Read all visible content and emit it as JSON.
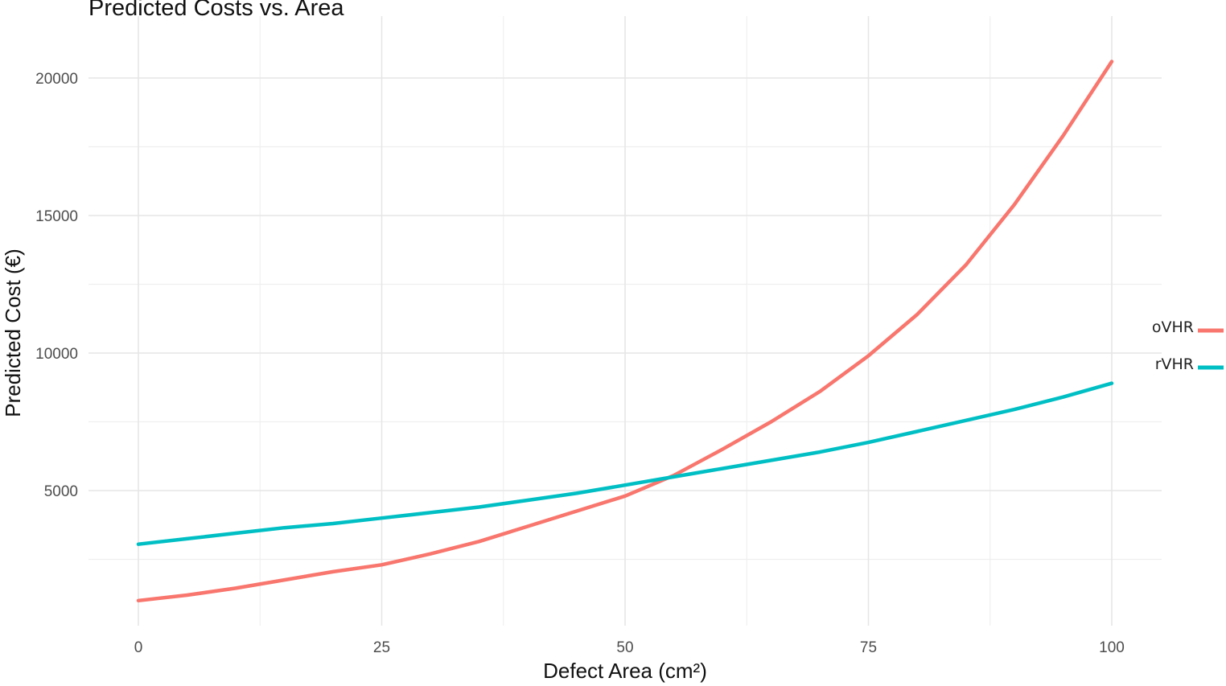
{
  "chart_data": {
    "type": "line",
    "title": "Predicted Costs vs. Area",
    "xlabel": "Defect Area (cm²)",
    "ylabel": "Predicted Cost (€)",
    "xlim": [
      -5,
      105
    ],
    "ylim": [
      0,
      21000
    ],
    "x_ticks": [
      0,
      25,
      50,
      75,
      100
    ],
    "y_ticks": [
      5000,
      10000,
      15000,
      20000
    ],
    "grid": true,
    "legend_position": "right",
    "series": [
      {
        "name": "oVHR",
        "color": "#F8766D",
        "x": [
          0,
          5,
          10,
          15,
          20,
          25,
          30,
          35,
          40,
          45,
          50,
          55,
          60,
          65,
          70,
          75,
          80,
          85,
          90,
          95,
          100
        ],
        "values": [
          1000,
          1200,
          1450,
          1750,
          2050,
          2300,
          2700,
          3150,
          3700,
          4250,
          4800,
          5550,
          6500,
          7500,
          8600,
          9900,
          11400,
          13200,
          15400,
          17900,
          20600
        ]
      },
      {
        "name": "rVHR",
        "color": "#00BFC4",
        "x": [
          0,
          5,
          10,
          15,
          20,
          25,
          30,
          35,
          40,
          45,
          50,
          55,
          60,
          65,
          70,
          75,
          80,
          85,
          90,
          95,
          100
        ],
        "values": [
          3050,
          3250,
          3450,
          3650,
          3800,
          4000,
          4200,
          4400,
          4650,
          4900,
          5200,
          5500,
          5800,
          6100,
          6400,
          6750,
          7150,
          7550,
          7950,
          8400,
          8900
        ]
      }
    ]
  }
}
